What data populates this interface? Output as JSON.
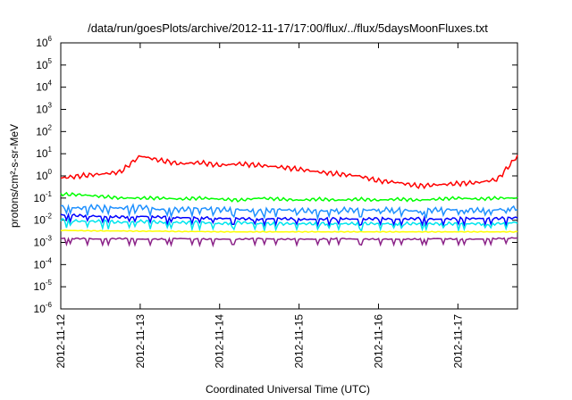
{
  "chart_data": {
    "type": "line",
    "title": "/data/run/goesPlots/archive/2012-11-17/17:00/flux/../flux/5daysMoonFluxes.txt",
    "xlabel": "Coordinated Universal Time (UTC)",
    "ylabel": "protons/cm²-s-sr-MeV",
    "yscale": "log",
    "ylim": [
      1e-06,
      1000000.0
    ],
    "xlim": [
      "2012-11-12",
      "2012-11-17 18:00"
    ],
    "grid": false,
    "legend": "none",
    "x_ticks": [
      "2012-11-12",
      "2012-11-13",
      "2012-11-14",
      "2012-11-15",
      "2012-11-16",
      "2012-11-17"
    ],
    "y_ticks": [
      {
        "base": "10",
        "exp": "6"
      },
      {
        "base": "10",
        "exp": "5"
      },
      {
        "base": "10",
        "exp": "4"
      },
      {
        "base": "10",
        "exp": "3"
      },
      {
        "base": "10",
        "exp": "2"
      },
      {
        "base": "10",
        "exp": "1"
      },
      {
        "base": "10",
        "exp": "0"
      },
      {
        "base": "10",
        "exp": "-1"
      },
      {
        "base": "10",
        "exp": "-2"
      },
      {
        "base": "10",
        "exp": "-3"
      },
      {
        "base": "10",
        "exp": "-4"
      },
      {
        "base": "10",
        "exp": "-5"
      },
      {
        "base": "10",
        "exp": "-6"
      }
    ],
    "x_days": [
      0,
      0.25,
      0.5,
      0.75,
      1.0,
      1.25,
      1.5,
      1.75,
      2.0,
      2.25,
      2.5,
      2.75,
      3.0,
      3.25,
      3.5,
      3.75,
      4.0,
      4.25,
      4.5,
      4.75,
      5.0,
      5.25,
      5.5,
      5.75
    ],
    "series": [
      {
        "color": "#ff0000",
        "values": [
          0.8,
          1.0,
          1.2,
          1.5,
          8.0,
          5.0,
          3.5,
          4.0,
          3.0,
          3.5,
          3.0,
          2.5,
          2.0,
          1.5,
          1.2,
          1.0,
          0.6,
          0.5,
          0.35,
          0.4,
          0.45,
          0.5,
          0.7,
          8.0
        ]
      },
      {
        "color": "#00ff00",
        "values": [
          0.15,
          0.14,
          0.12,
          0.1,
          0.1,
          0.1,
          0.09,
          0.1,
          0.09,
          0.08,
          0.1,
          0.09,
          0.08,
          0.09,
          0.08,
          0.09,
          0.08,
          0.09,
          0.08,
          0.09,
          0.1,
          0.09,
          0.1,
          0.1
        ]
      },
      {
        "color": "#1e90ff",
        "values": [
          0.04,
          0.035,
          0.04,
          0.035,
          0.04,
          0.03,
          0.03,
          0.035,
          0.03,
          0.03,
          0.025,
          0.03,
          0.028,
          0.025,
          0.03,
          0.028,
          0.03,
          0.03,
          0.025,
          0.03,
          0.03,
          0.028,
          0.03,
          0.035
        ]
      },
      {
        "color": "#0000ff",
        "values": [
          0.018,
          0.016,
          0.015,
          0.014,
          0.015,
          0.014,
          0.013,
          0.013,
          0.012,
          0.012,
          0.011,
          0.012,
          0.011,
          0.011,
          0.012,
          0.011,
          0.012,
          0.011,
          0.012,
          0.011,
          0.012,
          0.012,
          0.012,
          0.013
        ]
      },
      {
        "color": "#00e5ee",
        "values": [
          0.01,
          0.009,
          0.009,
          0.008,
          0.009,
          0.008,
          0.008,
          0.008,
          0.007,
          0.008,
          0.007,
          0.007,
          0.007,
          0.007,
          0.007,
          0.007,
          0.007,
          0.007,
          0.007,
          0.007,
          0.007,
          0.007,
          0.007,
          0.008
        ]
      },
      {
        "color": "#ffff00",
        "values": [
          0.0035,
          0.0034,
          0.0033,
          0.0033,
          0.0032,
          0.0032,
          0.0031,
          0.0031,
          0.003,
          0.003,
          0.003,
          0.003,
          0.003,
          0.003,
          0.003,
          0.003,
          0.003,
          0.003,
          0.003,
          0.003,
          0.003,
          0.003,
          0.003,
          0.003
        ]
      },
      {
        "color": "#8b2288",
        "values": [
          0.0015,
          0.0015,
          0.0014,
          0.0015,
          0.0014,
          0.0014,
          0.0015,
          0.0014,
          0.0014,
          0.0014,
          0.0015,
          0.0014,
          0.0014,
          0.0014,
          0.0015,
          0.0014,
          0.0014,
          0.0014,
          0.0014,
          0.0015,
          0.0014,
          0.0014,
          0.0015,
          0.0016
        ]
      }
    ]
  }
}
